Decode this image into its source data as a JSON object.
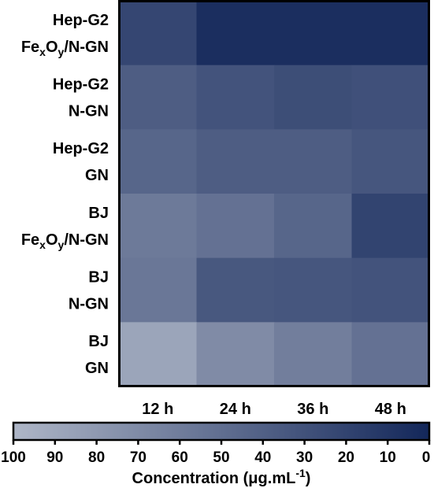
{
  "chart_data": {
    "type": "heatmap",
    "columns": [
      "12 h",
      "24 h",
      "36 h",
      "48 h"
    ],
    "rows": [
      {
        "line1": "Hep-G2",
        "line2_parts": [
          {
            "t": "Fe"
          },
          {
            "t": "x",
            "sub": true
          },
          {
            "t": "O"
          },
          {
            "t": "y",
            "sub": true
          },
          {
            "t": "/N-GN"
          }
        ],
        "values": [
          22,
          5,
          5,
          5
        ]
      },
      {
        "line1": "Hep-G2",
        "line2_parts": [
          {
            "t": "N-GN"
          }
        ],
        "values": [
          38,
          31,
          27,
          29
        ]
      },
      {
        "line1": "Hep-G2",
        "line2_parts": [
          {
            "t": "GN"
          }
        ],
        "values": [
          44,
          38,
          38,
          33
        ]
      },
      {
        "line1": "BJ",
        "line2_parts": [
          {
            "t": "Fe"
          },
          {
            "t": "x",
            "sub": true
          },
          {
            "t": "O"
          },
          {
            "t": "y",
            "sub": true
          },
          {
            "t": "/N-GN"
          }
        ],
        "values": [
          58,
          52,
          44,
          20
        ]
      },
      {
        "line1": "BJ",
        "line2_parts": [
          {
            "t": "N-GN"
          }
        ],
        "values": [
          56,
          34,
          33,
          31
        ]
      },
      {
        "line1": "BJ",
        "line2_parts": [
          {
            "t": "GN"
          }
        ],
        "values": [
          88,
          70,
          61,
          52
        ]
      }
    ],
    "colorbar": {
      "ticks": [
        "100",
        "90",
        "80",
        "70",
        "60",
        "50",
        "40",
        "30",
        "20",
        "10",
        "0"
      ],
      "min": 0,
      "max": 100,
      "color_at_min": "#13275A",
      "color_at_max": "#AEB6C7",
      "title_text": "Concentration (μg.mL",
      "title_sup": "-1",
      "title_close": ")"
    }
  }
}
